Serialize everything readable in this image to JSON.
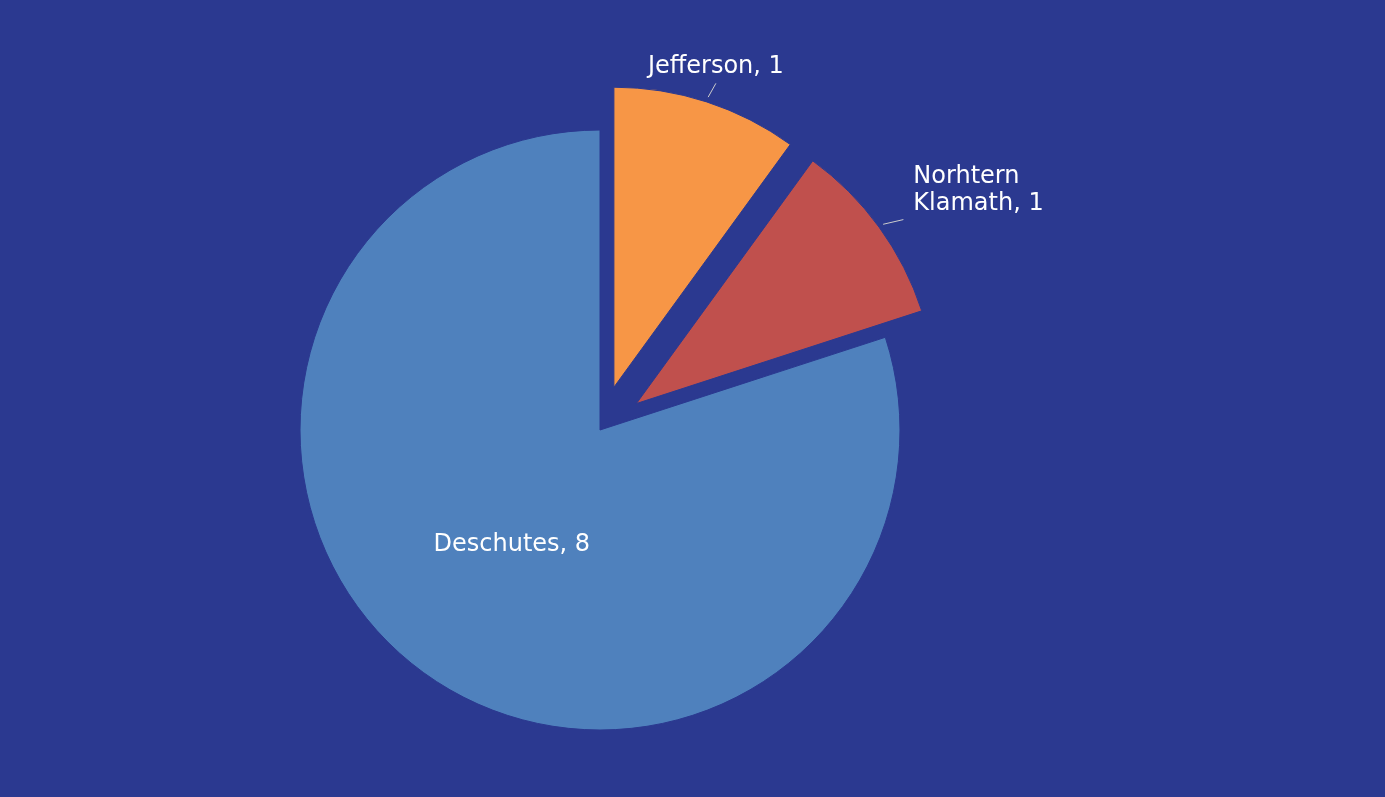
{
  "chart_data": {
    "type": "pie",
    "categories": [
      "Jefferson",
      "Norhtern Klamath",
      "Deschutes"
    ],
    "values": [
      1,
      1,
      8
    ],
    "value_labels": [
      ", 1",
      ", 1",
      ", 8"
    ],
    "colors": [
      "#f79646",
      "#c0504d",
      "#4f81bd"
    ]
  }
}
